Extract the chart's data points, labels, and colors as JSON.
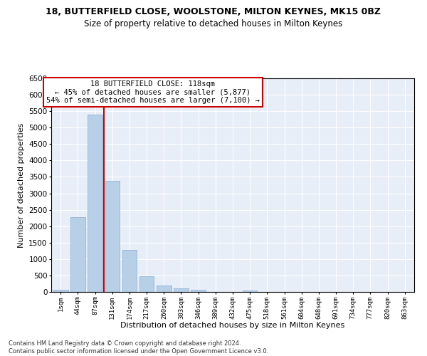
{
  "title": "18, BUTTERFIELD CLOSE, WOOLSTONE, MILTON KEYNES, MK15 0BZ",
  "subtitle": "Size of property relative to detached houses in Milton Keynes",
  "xlabel": "Distribution of detached houses by size in Milton Keynes",
  "ylabel": "Number of detached properties",
  "bar_labels": [
    "1sqm",
    "44sqm",
    "87sqm",
    "131sqm",
    "174sqm",
    "217sqm",
    "260sqm",
    "303sqm",
    "346sqm",
    "389sqm",
    "432sqm",
    "475sqm",
    "518sqm",
    "561sqm",
    "604sqm",
    "648sqm",
    "691sqm",
    "734sqm",
    "777sqm",
    "820sqm",
    "863sqm"
  ],
  "bar_values": [
    75,
    2270,
    5400,
    3380,
    1280,
    480,
    185,
    100,
    55,
    0,
    0,
    50,
    0,
    0,
    0,
    0,
    0,
    0,
    0,
    0,
    0
  ],
  "bar_color": "#b8cfe8",
  "bar_edge_color": "#90b4d8",
  "vline_color": "#cc0000",
  "vline_x": 2.5,
  "annotation_text": "18 BUTTERFIELD CLOSE: 118sqm\n← 45% of detached houses are smaller (5,877)\n54% of semi-detached houses are larger (7,100) →",
  "annotation_box_color": "white",
  "annotation_box_edge": "#cc0000",
  "ylim": [
    0,
    6500
  ],
  "yticks": [
    0,
    500,
    1000,
    1500,
    2000,
    2500,
    3000,
    3500,
    4000,
    4500,
    5000,
    5500,
    6000,
    6500
  ],
  "background_color": "#e8eef8",
  "grid_color": "white",
  "footer": "Contains HM Land Registry data © Crown copyright and database right 2024.\nContains public sector information licensed under the Open Government Licence v3.0.",
  "title_fontsize": 9,
  "subtitle_fontsize": 8.5,
  "xlabel_fontsize": 8,
  "ylabel_fontsize": 8,
  "footer_fontsize": 6
}
